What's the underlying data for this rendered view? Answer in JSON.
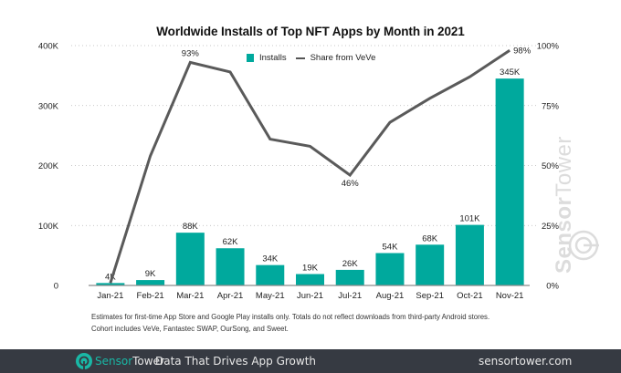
{
  "chart_data": {
    "type": "bar",
    "title": "Worldwide Installs of Top NFT Apps by Month in 2021",
    "categories": [
      "Jan-21",
      "Feb-21",
      "Mar-21",
      "Apr-21",
      "May-21",
      "Jun-21",
      "Jul-21",
      "Aug-21",
      "Sep-21",
      "Oct-21",
      "Nov-21"
    ],
    "series": [
      {
        "name": "Installs",
        "type": "bar",
        "axis": "left",
        "color": "#00a99d",
        "values": [
          4000,
          9000,
          88000,
          62000,
          34000,
          19000,
          26000,
          54000,
          68000,
          101000,
          345000
        ],
        "labels": [
          "4K",
          "9K",
          "88K",
          "62K",
          "34K",
          "19K",
          "26K",
          "54K",
          "68K",
          "101K",
          "345K"
        ]
      },
      {
        "name": "Share from VeVe",
        "type": "line",
        "axis": "right",
        "color": "#5a5a5a",
        "values": [
          1,
          54,
          93,
          89,
          61,
          58,
          46,
          68,
          78,
          87,
          98
        ],
        "point_labels": {
          "2": "93%",
          "6": "46%",
          "10": "98%"
        }
      }
    ],
    "left_axis": {
      "ylim": [
        0,
        400000
      ],
      "ticks": [
        0,
        100000,
        200000,
        300000,
        400000
      ],
      "tick_labels": [
        "0",
        "100K",
        "200K",
        "300K",
        "400K"
      ]
    },
    "right_axis": {
      "ylim": [
        0,
        100
      ],
      "ticks": [
        0,
        25,
        50,
        75,
        100
      ],
      "tick_labels": [
        "0%",
        "25%",
        "50%",
        "75%",
        "100%"
      ]
    },
    "grid": true,
    "legend": {
      "position": "top-center",
      "entries": [
        "Installs",
        "Share from VeVe"
      ]
    }
  },
  "notes": [
    "Estimates for first-time App Store and Google Play installs only. Totals do not reflect downloads from third-party Android stores.",
    "Cohort includes VeVe, Fantastec SWAP, OurSong, and Sweet."
  ],
  "watermark": {
    "part1": "Sensor",
    "part2": "Tower"
  },
  "footer": {
    "brand_part1": "Sensor",
    "brand_part2": "Tower",
    "tagline": "Data That Drives App Growth",
    "url": "sensortower.com"
  }
}
